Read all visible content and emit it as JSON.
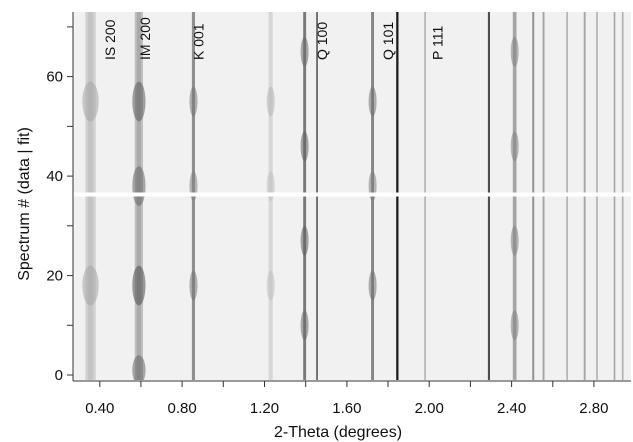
{
  "chart_data": {
    "type": "heatmap",
    "title": "",
    "xlabel": "2-Theta (degrees)",
    "ylabel": "Spectrum # (data | fit)",
    "xlim": [
      0.27,
      2.98
    ],
    "ylim": [
      -1,
      73
    ],
    "x_ticks": [
      0.4,
      0.6,
      0.8,
      1.0,
      1.2,
      1.4,
      1.6,
      1.8,
      2.0,
      2.2,
      2.4,
      2.6,
      2.8
    ],
    "x_tick_labels": [
      "0.40",
      "0.80",
      "1.20",
      "1.60",
      "2.00",
      "2.40",
      "2.80"
    ],
    "x_tick_label_values": [
      0.4,
      0.8,
      1.2,
      1.6,
      2.0,
      2.4,
      2.8
    ],
    "y_ticks": [
      0,
      10,
      20,
      30,
      40,
      50,
      60,
      70
    ],
    "y_tick_labels": [
      "0",
      "20",
      "40",
      "60"
    ],
    "y_tick_label_values": [
      0,
      20,
      40,
      60
    ],
    "separator_spectrum": 36.3,
    "colormap": "grayscale (dark = high intensity)",
    "colors": {
      "background": "#f1f1f1",
      "peak": "#0a0a0a",
      "separator": "#ffffff",
      "axis": "#333333"
    },
    "peak_labels": [
      {
        "text": "IS 200",
        "x": 0.45
      },
      {
        "text": "IM 200",
        "x": 0.62
      },
      {
        "text": "K 001",
        "x": 0.88
      },
      {
        "text": "Q 100",
        "x": 1.48
      },
      {
        "text": "Q 101",
        "x": 1.8
      },
      {
        "text": "P 111",
        "x": 2.04
      }
    ],
    "bands": [
      {
        "x": 0.355,
        "intensity": 0.25,
        "width": 0.05,
        "spots": [
          {
            "y": 55,
            "intensity": 0.2,
            "spread": 4
          },
          {
            "y": 18,
            "intensity": 0.2,
            "spread": 4
          }
        ]
      },
      {
        "x": 0.59,
        "intensity": 0.4,
        "width": 0.04,
        "spots": [
          {
            "y": 55,
            "intensity": 0.45,
            "spread": 4
          },
          {
            "y": 38,
            "intensity": 0.4,
            "spread": 4
          },
          {
            "y": 18,
            "intensity": 0.5,
            "spread": 4
          },
          {
            "y": 1,
            "intensity": 0.4,
            "spread": 3
          }
        ]
      },
      {
        "x": 0.855,
        "intensity": 0.45,
        "width": 0.015,
        "spots": [
          {
            "y": 55,
            "intensity": 0.3,
            "spread": 3
          },
          {
            "y": 38,
            "intensity": 0.25,
            "spread": 3
          },
          {
            "y": 18,
            "intensity": 0.3,
            "spread": 3
          }
        ]
      },
      {
        "x": 1.23,
        "intensity": 0.12,
        "width": 0.02,
        "spots": [
          {
            "y": 55,
            "intensity": 0.2,
            "spread": 3
          },
          {
            "y": 38,
            "intensity": 0.15,
            "spread": 3
          },
          {
            "y": 18,
            "intensity": 0.15,
            "spread": 3
          }
        ]
      },
      {
        "x": 1.395,
        "intensity": 0.55,
        "width": 0.014,
        "spots": [
          {
            "y": 65,
            "intensity": 0.3,
            "spread": 3
          },
          {
            "y": 46,
            "intensity": 0.35,
            "spread": 3
          },
          {
            "y": 27,
            "intensity": 0.35,
            "spread": 3
          },
          {
            "y": 10,
            "intensity": 0.3,
            "spread": 3
          }
        ]
      },
      {
        "x": 1.455,
        "intensity": 0.6,
        "width": 0.009,
        "spots": []
      },
      {
        "x": 1.725,
        "intensity": 0.5,
        "width": 0.014,
        "spots": [
          {
            "y": 55,
            "intensity": 0.3,
            "spread": 3
          },
          {
            "y": 38,
            "intensity": 0.25,
            "spread": 3
          },
          {
            "y": 18,
            "intensity": 0.3,
            "spread": 3
          }
        ]
      },
      {
        "x": 1.845,
        "intensity": 0.97,
        "width": 0.011,
        "spots": []
      },
      {
        "x": 1.98,
        "intensity": 0.3,
        "width": 0.007,
        "spots": []
      },
      {
        "x": 2.29,
        "intensity": 0.75,
        "width": 0.01,
        "spots": []
      },
      {
        "x": 2.415,
        "intensity": 0.35,
        "width": 0.018,
        "spots": [
          {
            "y": 65,
            "intensity": 0.3,
            "spread": 3
          },
          {
            "y": 46,
            "intensity": 0.3,
            "spread": 3
          },
          {
            "y": 27,
            "intensity": 0.3,
            "spread": 3
          },
          {
            "y": 10,
            "intensity": 0.3,
            "spread": 3
          }
        ]
      },
      {
        "x": 2.505,
        "intensity": 0.45,
        "width": 0.009,
        "spots": []
      },
      {
        "x": 2.555,
        "intensity": 0.35,
        "width": 0.009,
        "spots": []
      },
      {
        "x": 2.67,
        "intensity": 0.3,
        "width": 0.008,
        "spots": []
      },
      {
        "x": 2.755,
        "intensity": 0.35,
        "width": 0.009,
        "spots": []
      },
      {
        "x": 2.815,
        "intensity": 0.3,
        "width": 0.008,
        "spots": []
      },
      {
        "x": 2.9,
        "intensity": 0.35,
        "width": 0.008,
        "spots": []
      },
      {
        "x": 2.94,
        "intensity": 0.3,
        "width": 0.008,
        "spots": []
      }
    ]
  }
}
